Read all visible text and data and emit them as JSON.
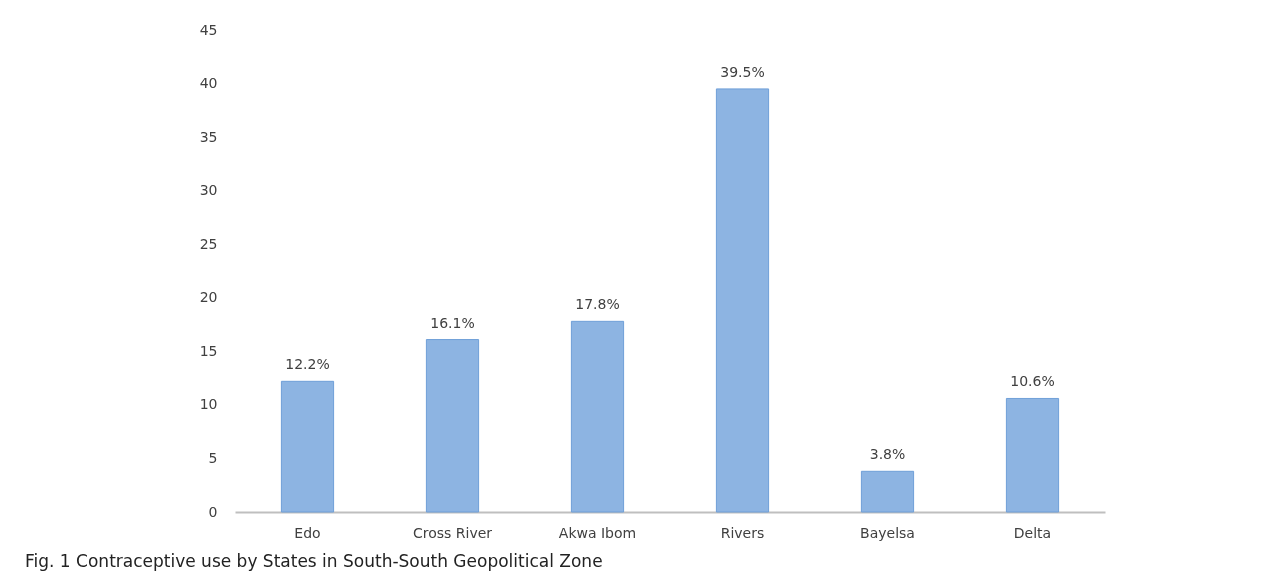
{
  "chart_data": {
    "type": "bar",
    "categories": [
      "Edo",
      "Cross River",
      "Akwa Ibom",
      "Rivers",
      "Bayelsa",
      "Delta"
    ],
    "values": [
      12.2,
      16.1,
      17.8,
      39.5,
      3.8,
      10.6
    ],
    "value_labels": [
      "12.2%",
      "16.1%",
      "17.8%",
      "39.5%",
      "3.8%",
      "10.6%"
    ],
    "color": "#8db4e2",
    "ylim": [
      0,
      45
    ],
    "yticks": [
      0,
      5,
      10,
      15,
      20,
      25,
      30,
      35,
      40,
      45
    ],
    "grid": false,
    "annotations": [
      "Fig. 1  Contraceptive use by States in South-South Geopolitical Zone"
    ]
  }
}
